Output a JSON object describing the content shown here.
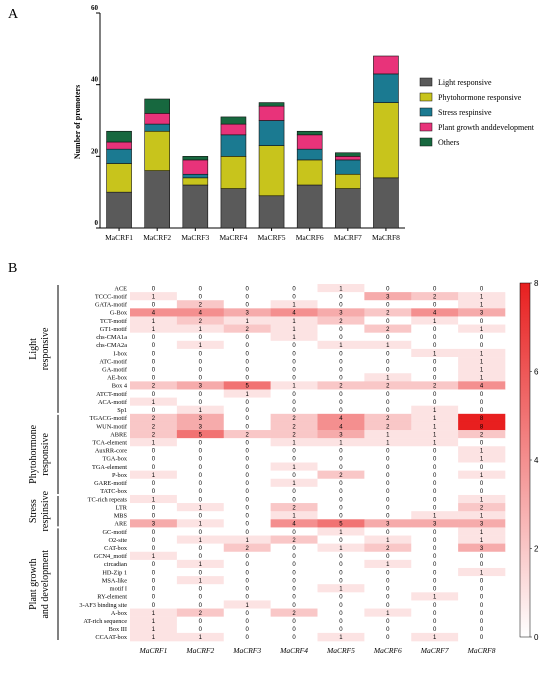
{
  "panels": {
    "a_label": "A",
    "b_label": "B"
  },
  "chart_data": [
    {
      "type": "bar",
      "stacked": true,
      "title": "",
      "xlabel": "",
      "ylabel": "Number of promoters",
      "ylim": [
        0,
        60
      ],
      "yticks": [
        0,
        20,
        40,
        60
      ],
      "categories": [
        "MaCRF1",
        "MaCRF2",
        "MaCRF3",
        "MaCRF4",
        "MaCRF5",
        "MaCRF6",
        "MaCRF7",
        "MaCRF8"
      ],
      "legend_position": "right",
      "series": [
        {
          "name": "Light responsive",
          "color": "#5a5a5a",
          "values": [
            10,
            16,
            12,
            11,
            9,
            12,
            11,
            14
          ]
        },
        {
          "name": "Phytohormone responsive",
          "color": "#c8c41c",
          "values": [
            8,
            11,
            2,
            9,
            14,
            7,
            4,
            21
          ]
        },
        {
          "name": "Stress respinsive",
          "color": "#1b7a91",
          "values": [
            4,
            2,
            1,
            6,
            7,
            3,
            4,
            8
          ]
        },
        {
          "name": "Plant growth anddevelopment",
          "color": "#e8337a",
          "values": [
            2,
            3,
            4,
            3,
            4,
            4,
            1,
            5
          ]
        },
        {
          "name": "Others",
          "color": "#17683f",
          "values": [
            3,
            4,
            1,
            2,
            1,
            1,
            1,
            0
          ]
        }
      ]
    },
    {
      "type": "heatmap",
      "title": "",
      "columns": [
        "MaCRF1",
        "MaCRF2",
        "MaCRF3",
        "MaCRF4",
        "MaCRF5",
        "MaCRF6",
        "MaCRF7",
        "MaCRF8"
      ],
      "rows": [
        "ACE",
        "TCCC-motif",
        "GATA-motif",
        "G-Box",
        "TCT-motif",
        "GT1-motif",
        "chs-CMA1a",
        "chs-CMA2a",
        "I-box",
        "ATC-motif",
        "GA-motif",
        "AE-box",
        "Box 4",
        "ATCT-motif",
        "ACA-motif",
        "Sp1",
        "TGACG-motif",
        "WUN-motif",
        "ABRE",
        "TCA-element",
        "AuxRR-core",
        "TGA-box",
        "TGA-element",
        "P-box",
        "GARE-motif",
        "TATC-box",
        "TC-rich repeats",
        "LTR",
        "MBS",
        "ARE",
        "GC-motif",
        "O2-site",
        "CAT-box",
        "GCN4_motif",
        "circadian",
        "HD-Zip 1",
        "MSA-like",
        "motif I",
        "RY-element",
        "3-AF3 binding site",
        "A-box",
        "AT-rich sequence",
        "Box III",
        "CCAAT-box"
      ],
      "values": [
        [
          0,
          0,
          0,
          0,
          1,
          0,
          0,
          0
        ],
        [
          1,
          0,
          0,
          0,
          0,
          3,
          2,
          1
        ],
        [
          0,
          2,
          0,
          1,
          0,
          0,
          0,
          1
        ],
        [
          4,
          4,
          3,
          4,
          3,
          2,
          4,
          3
        ],
        [
          1,
          2,
          1,
          1,
          2,
          0,
          1,
          0
        ],
        [
          1,
          1,
          2,
          1,
          0,
          2,
          0,
          1
        ],
        [
          0,
          0,
          0,
          1,
          0,
          0,
          0,
          0
        ],
        [
          0,
          1,
          0,
          0,
          1,
          1,
          0,
          0
        ],
        [
          0,
          0,
          0,
          0,
          0,
          0,
          1,
          1
        ],
        [
          0,
          0,
          0,
          0,
          0,
          0,
          0,
          1
        ],
        [
          0,
          0,
          0,
          0,
          0,
          0,
          0,
          1
        ],
        [
          0,
          0,
          0,
          0,
          0,
          1,
          0,
          1
        ],
        [
          2,
          3,
          5,
          1,
          2,
          2,
          2,
          4
        ],
        [
          0,
          0,
          1,
          0,
          0,
          0,
          0,
          0
        ],
        [
          1,
          0,
          0,
          0,
          0,
          0,
          0,
          0
        ],
        [
          0,
          1,
          0,
          0,
          0,
          0,
          1,
          0
        ],
        [
          2,
          3,
          0,
          2,
          4,
          2,
          1,
          8
        ],
        [
          2,
          3,
          0,
          2,
          4,
          2,
          1,
          8
        ],
        [
          2,
          5,
          2,
          2,
          3,
          1,
          1,
          2
        ],
        [
          1,
          0,
          0,
          1,
          1,
          1,
          1,
          0
        ],
        [
          0,
          0,
          0,
          0,
          0,
          0,
          0,
          1
        ],
        [
          0,
          0,
          0,
          0,
          0,
          0,
          0,
          1
        ],
        [
          0,
          0,
          0,
          1,
          0,
          0,
          0,
          0
        ],
        [
          1,
          0,
          0,
          0,
          2,
          0,
          0,
          1
        ],
        [
          0,
          0,
          0,
          1,
          0,
          0,
          0,
          0
        ],
        [
          0,
          0,
          0,
          0,
          0,
          0,
          0,
          0
        ],
        [
          1,
          0,
          0,
          0,
          0,
          0,
          0,
          1
        ],
        [
          0,
          1,
          0,
          2,
          0,
          0,
          0,
          2
        ],
        [
          0,
          0,
          0,
          1,
          0,
          0,
          1,
          1
        ],
        [
          3,
          1,
          0,
          4,
          5,
          3,
          3,
          3
        ],
        [
          0,
          0,
          0,
          0,
          1,
          0,
          0,
          1
        ],
        [
          0,
          1,
          1,
          2,
          0,
          1,
          0,
          1
        ],
        [
          0,
          0,
          2,
          0,
          1,
          2,
          0,
          3
        ],
        [
          1,
          0,
          0,
          0,
          0,
          0,
          0,
          0
        ],
        [
          0,
          1,
          0,
          0,
          0,
          1,
          0,
          0
        ],
        [
          0,
          0,
          0,
          0,
          0,
          0,
          0,
          1
        ],
        [
          0,
          1,
          0,
          0,
          0,
          0,
          0,
          0
        ],
        [
          0,
          0,
          0,
          0,
          1,
          0,
          0,
          0
        ],
        [
          0,
          0,
          0,
          0,
          0,
          0,
          1,
          0
        ],
        [
          0,
          0,
          1,
          0,
          0,
          0,
          0,
          0
        ],
        [
          1,
          2,
          0,
          2,
          0,
          1,
          0,
          0
        ],
        [
          1,
          0,
          0,
          0,
          0,
          0,
          0,
          0
        ],
        [
          1,
          0,
          0,
          0,
          0,
          0,
          0,
          0
        ],
        [
          1,
          1,
          0,
          0,
          1,
          0,
          1,
          0
        ]
      ],
      "groups": [
        {
          "label": "Light responsive",
          "rows": [
            0,
            15
          ]
        },
        {
          "label": "Phytohormone responsive",
          "rows": [
            16,
            25
          ]
        },
        {
          "label": "Stress respinsive",
          "rows": [
            26,
            29
          ]
        },
        {
          "label": "Plant growth and development",
          "rows": [
            30,
            43
          ]
        }
      ],
      "colorbar": {
        "min": 0,
        "max": 8,
        "ticks": [
          0,
          2,
          4,
          6,
          8
        ],
        "low_color": "#ffffff",
        "high_color": "#e81f1f"
      }
    }
  ]
}
